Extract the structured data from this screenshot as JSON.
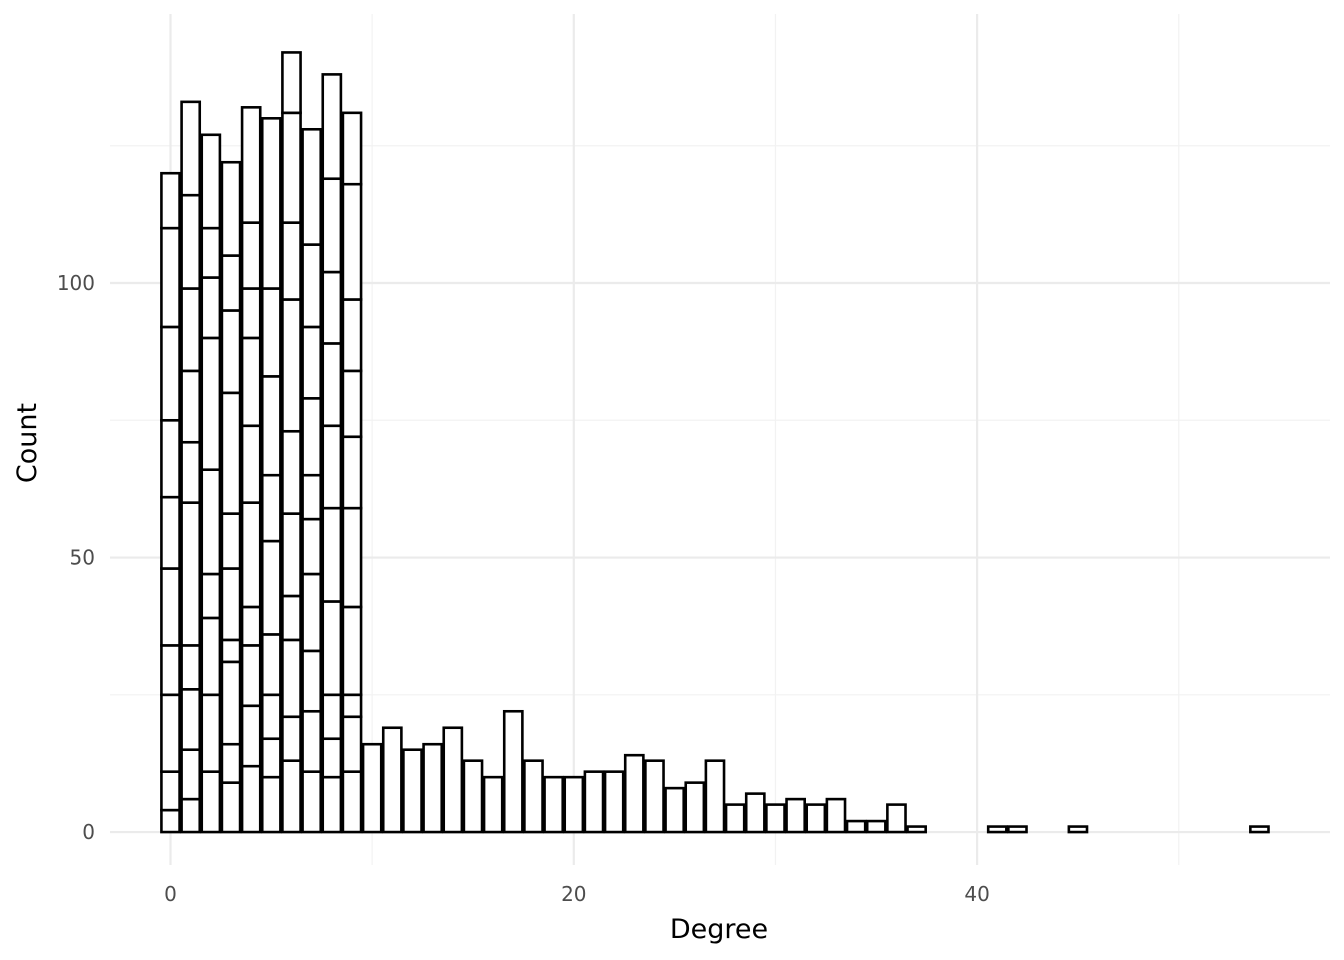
{
  "chart_data": {
    "type": "bar",
    "subtype": "stacked-histogram",
    "xlabel": "Degree",
    "ylabel": "Count",
    "xlim": [
      -3,
      57.5
    ],
    "ylim": [
      -6,
      149
    ],
    "x_ticks": [
      0,
      20,
      40
    ],
    "y_ticks": [
      0,
      50,
      100
    ],
    "x_tick_labels": [
      "0",
      "20",
      "40"
    ],
    "y_tick_labels": [
      "0",
      "50",
      "100"
    ],
    "grid": true,
    "bar_fill": "#ffffff",
    "bar_outline": "#000000",
    "grid_color": "#ebebeb",
    "stacked_bins": [
      {
        "x": 0,
        "boundaries": [
          0,
          4,
          11,
          25,
          34,
          48,
          61,
          75,
          92,
          110,
          120
        ]
      },
      {
        "x": 1,
        "boundaries": [
          0,
          6,
          15,
          26,
          34,
          60,
          71,
          84,
          99,
          116,
          133
        ]
      },
      {
        "x": 2,
        "boundaries": [
          0,
          11,
          25,
          39,
          47,
          66,
          90,
          101,
          110,
          127
        ]
      },
      {
        "x": 3,
        "boundaries": [
          0,
          9,
          16,
          31,
          35,
          48,
          58,
          80,
          95,
          105,
          122
        ]
      },
      {
        "x": 4,
        "boundaries": [
          0,
          12,
          23,
          34,
          41,
          60,
          74,
          90,
          99,
          111,
          132
        ]
      },
      {
        "x": 5,
        "boundaries": [
          0,
          10,
          17,
          25,
          36,
          53,
          65,
          83,
          99,
          130
        ]
      },
      {
        "x": 6,
        "boundaries": [
          0,
          13,
          21,
          35,
          43,
          58,
          73,
          97,
          111,
          131,
          142
        ]
      },
      {
        "x": 7,
        "boundaries": [
          0,
          11,
          22,
          33,
          47,
          57,
          65,
          79,
          92,
          107,
          128
        ]
      },
      {
        "x": 8,
        "boundaries": [
          0,
          10,
          17,
          25,
          42,
          59,
          74,
          89,
          102,
          119,
          138
        ]
      },
      {
        "x": 9,
        "boundaries": [
          0,
          11,
          21,
          25,
          41,
          59,
          72,
          84,
          97,
          118,
          131
        ]
      }
    ],
    "bins": [
      {
        "x": 10,
        "count": 16
      },
      {
        "x": 11,
        "count": 19
      },
      {
        "x": 12,
        "count": 15
      },
      {
        "x": 13,
        "count": 16
      },
      {
        "x": 14,
        "count": 19
      },
      {
        "x": 15,
        "count": 13
      },
      {
        "x": 16,
        "count": 10
      },
      {
        "x": 17,
        "count": 22
      },
      {
        "x": 18,
        "count": 13
      },
      {
        "x": 19,
        "count": 10
      },
      {
        "x": 20,
        "count": 10
      },
      {
        "x": 21,
        "count": 11
      },
      {
        "x": 22,
        "count": 11
      },
      {
        "x": 23,
        "count": 14
      },
      {
        "x": 24,
        "count": 13
      },
      {
        "x": 25,
        "count": 8
      },
      {
        "x": 26,
        "count": 9
      },
      {
        "x": 27,
        "count": 13
      },
      {
        "x": 28,
        "count": 5
      },
      {
        "x": 29,
        "count": 7
      },
      {
        "x": 30,
        "count": 5
      },
      {
        "x": 31,
        "count": 6
      },
      {
        "x": 32,
        "count": 5
      },
      {
        "x": 33,
        "count": 6
      },
      {
        "x": 34,
        "count": 2
      },
      {
        "x": 35,
        "count": 2
      },
      {
        "x": 36,
        "count": 5
      },
      {
        "x": 37,
        "count": 1
      },
      {
        "x": 41,
        "count": 1
      },
      {
        "x": 42,
        "count": 1
      },
      {
        "x": 45,
        "count": 1
      },
      {
        "x": 54,
        "count": 1
      }
    ]
  }
}
